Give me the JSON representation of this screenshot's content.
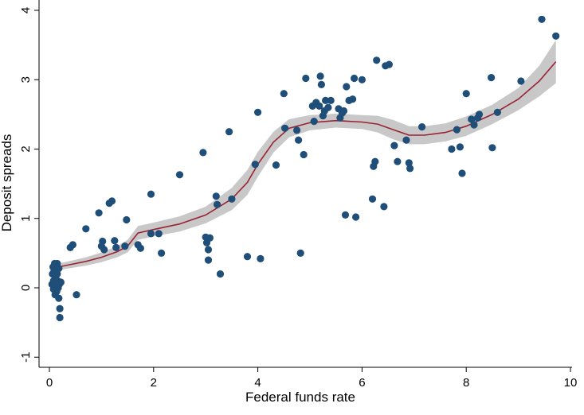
{
  "chart_data": {
    "type": "scatter",
    "xlabel": "Federal funds rate",
    "ylabel": "Deposit spreads",
    "xlim": [
      0,
      10
    ],
    "ylim": [
      -1,
      4
    ],
    "x_ticks": [
      0,
      2,
      4,
      6,
      8,
      10
    ],
    "y_ticks": [
      -1,
      0,
      1,
      2,
      3,
      4
    ],
    "grid": false,
    "colors": {
      "points": "#1f4e79",
      "fit_line": "#9b2335",
      "ci_band": "#c8c8c8"
    },
    "points": [
      {
        "x": 0.05,
        "y": 0.05
      },
      {
        "x": 0.06,
        "y": 0.2
      },
      {
        "x": 0.07,
        "y": 0.3
      },
      {
        "x": 0.08,
        "y": 0.1
      },
      {
        "x": 0.09,
        "y": 0.25
      },
      {
        "x": 0.1,
        "y": 0.35
      },
      {
        "x": 0.1,
        "y": 0.0
      },
      {
        "x": 0.11,
        "y": -0.1
      },
      {
        "x": 0.12,
        "y": 0.15
      },
      {
        "x": 0.13,
        "y": 0.05
      },
      {
        "x": 0.14,
        "y": -0.05
      },
      {
        "x": 0.15,
        "y": 0.2
      },
      {
        "x": 0.15,
        "y": 0.35
      },
      {
        "x": 0.16,
        "y": 0.1
      },
      {
        "x": 0.17,
        "y": 0.0
      },
      {
        "x": 0.18,
        "y": -0.15
      },
      {
        "x": 0.18,
        "y": 0.28
      },
      {
        "x": 0.19,
        "y": 0.05
      },
      {
        "x": 0.2,
        "y": -0.3
      },
      {
        "x": 0.2,
        "y": -0.43
      },
      {
        "x": 0.22,
        "y": 0.08
      },
      {
        "x": 0.12,
        "y": 0.3
      },
      {
        "x": 0.14,
        "y": 0.22
      },
      {
        "x": 0.08,
        "y": -0.02
      },
      {
        "x": 0.4,
        "y": 0.58
      },
      {
        "x": 0.45,
        "y": 0.62
      },
      {
        "x": 0.52,
        "y": -0.1
      },
      {
        "x": 0.7,
        "y": 0.85
      },
      {
        "x": 0.95,
        "y": 1.08
      },
      {
        "x": 1.0,
        "y": 0.6
      },
      {
        "x": 1.02,
        "y": 0.67
      },
      {
        "x": 1.05,
        "y": 0.55
      },
      {
        "x": 1.15,
        "y": 1.22
      },
      {
        "x": 1.2,
        "y": 1.25
      },
      {
        "x": 1.25,
        "y": 0.68
      },
      {
        "x": 1.28,
        "y": 0.58
      },
      {
        "x": 1.45,
        "y": 0.6
      },
      {
        "x": 1.48,
        "y": 0.98
      },
      {
        "x": 1.7,
        "y": 0.62
      },
      {
        "x": 1.75,
        "y": 0.57
      },
      {
        "x": 1.95,
        "y": 1.35
      },
      {
        "x": 1.95,
        "y": 0.78
      },
      {
        "x": 2.1,
        "y": 0.78
      },
      {
        "x": 2.15,
        "y": 0.5
      },
      {
        "x": 2.5,
        "y": 1.63
      },
      {
        "x": 2.95,
        "y": 1.95
      },
      {
        "x": 3.0,
        "y": 0.73
      },
      {
        "x": 3.02,
        "y": 0.65
      },
      {
        "x": 3.05,
        "y": 0.55
      },
      {
        "x": 3.05,
        "y": 0.4
      },
      {
        "x": 3.08,
        "y": 0.72
      },
      {
        "x": 3.2,
        "y": 1.32
      },
      {
        "x": 3.22,
        "y": 1.2
      },
      {
        "x": 3.28,
        "y": 0.2
      },
      {
        "x": 3.45,
        "y": 2.25
      },
      {
        "x": 3.5,
        "y": 1.28
      },
      {
        "x": 3.8,
        "y": 0.45
      },
      {
        "x": 3.95,
        "y": 1.78
      },
      {
        "x": 4.0,
        "y": 2.53
      },
      {
        "x": 4.05,
        "y": 0.42
      },
      {
        "x": 4.35,
        "y": 1.77
      },
      {
        "x": 4.5,
        "y": 2.8
      },
      {
        "x": 4.52,
        "y": 2.3
      },
      {
        "x": 4.75,
        "y": 2.27
      },
      {
        "x": 4.78,
        "y": 2.13
      },
      {
        "x": 4.82,
        "y": 0.5
      },
      {
        "x": 4.88,
        "y": 1.92
      },
      {
        "x": 4.92,
        "y": 3.02
      },
      {
        "x": 5.05,
        "y": 2.62
      },
      {
        "x": 5.08,
        "y": 2.4
      },
      {
        "x": 5.12,
        "y": 2.67
      },
      {
        "x": 5.18,
        "y": 2.62
      },
      {
        "x": 5.2,
        "y": 3.05
      },
      {
        "x": 5.22,
        "y": 2.93
      },
      {
        "x": 5.25,
        "y": 2.48
      },
      {
        "x": 5.28,
        "y": 2.55
      },
      {
        "x": 5.3,
        "y": 2.7
      },
      {
        "x": 5.35,
        "y": 2.6
      },
      {
        "x": 5.4,
        "y": 2.7
      },
      {
        "x": 5.55,
        "y": 2.58
      },
      {
        "x": 5.58,
        "y": 2.45
      },
      {
        "x": 5.62,
        "y": 2.52
      },
      {
        "x": 5.65,
        "y": 2.55
      },
      {
        "x": 5.68,
        "y": 1.05
      },
      {
        "x": 5.7,
        "y": 2.9
      },
      {
        "x": 5.75,
        "y": 2.7
      },
      {
        "x": 5.82,
        "y": 2.72
      },
      {
        "x": 5.85,
        "y": 3.02
      },
      {
        "x": 5.88,
        "y": 1.02
      },
      {
        "x": 6.0,
        "y": 3.0
      },
      {
        "x": 6.2,
        "y": 1.28
      },
      {
        "x": 6.22,
        "y": 1.75
      },
      {
        "x": 6.25,
        "y": 1.82
      },
      {
        "x": 6.28,
        "y": 3.28
      },
      {
        "x": 6.42,
        "y": 1.17
      },
      {
        "x": 6.45,
        "y": 3.2
      },
      {
        "x": 6.52,
        "y": 3.22
      },
      {
        "x": 6.62,
        "y": 2.05
      },
      {
        "x": 6.68,
        "y": 1.82
      },
      {
        "x": 6.85,
        "y": 2.13
      },
      {
        "x": 6.9,
        "y": 1.8
      },
      {
        "x": 6.92,
        "y": 1.72
      },
      {
        "x": 7.15,
        "y": 2.32
      },
      {
        "x": 7.72,
        "y": 2.0
      },
      {
        "x": 7.82,
        "y": 2.28
      },
      {
        "x": 7.88,
        "y": 2.03
      },
      {
        "x": 7.92,
        "y": 1.65
      },
      {
        "x": 8.0,
        "y": 2.8
      },
      {
        "x": 8.1,
        "y": 2.43
      },
      {
        "x": 8.15,
        "y": 2.35
      },
      {
        "x": 8.22,
        "y": 2.45
      },
      {
        "x": 8.25,
        "y": 2.5
      },
      {
        "x": 8.48,
        "y": 3.03
      },
      {
        "x": 8.5,
        "y": 2.02
      },
      {
        "x": 8.6,
        "y": 2.53
      },
      {
        "x": 9.05,
        "y": 2.98
      },
      {
        "x": 9.45,
        "y": 3.87
      },
      {
        "x": 9.72,
        "y": 3.63
      }
    ],
    "fit_line": [
      {
        "x": 0.05,
        "y": 0.28
      },
      {
        "x": 0.3,
        "y": 0.32
      },
      {
        "x": 0.7,
        "y": 0.38
      },
      {
        "x": 1.0,
        "y": 0.44
      },
      {
        "x": 1.3,
        "y": 0.52
      },
      {
        "x": 1.5,
        "y": 0.6
      },
      {
        "x": 1.7,
        "y": 0.79
      },
      {
        "x": 2.0,
        "y": 0.84
      },
      {
        "x": 2.5,
        "y": 0.92
      },
      {
        "x": 3.0,
        "y": 1.05
      },
      {
        "x": 3.5,
        "y": 1.28
      },
      {
        "x": 3.8,
        "y": 1.52
      },
      {
        "x": 4.0,
        "y": 1.78
      },
      {
        "x": 4.3,
        "y": 2.1
      },
      {
        "x": 4.6,
        "y": 2.3
      },
      {
        "x": 5.0,
        "y": 2.38
      },
      {
        "x": 5.5,
        "y": 2.41
      },
      {
        "x": 6.0,
        "y": 2.39
      },
      {
        "x": 6.3,
        "y": 2.36
      },
      {
        "x": 6.6,
        "y": 2.28
      },
      {
        "x": 6.9,
        "y": 2.2
      },
      {
        "x": 7.2,
        "y": 2.2
      },
      {
        "x": 7.6,
        "y": 2.24
      },
      {
        "x": 8.0,
        "y": 2.33
      },
      {
        "x": 8.5,
        "y": 2.5
      },
      {
        "x": 9.0,
        "y": 2.72
      },
      {
        "x": 9.4,
        "y": 2.98
      },
      {
        "x": 9.72,
        "y": 3.26
      }
    ],
    "ci_lower": [
      {
        "x": 0.05,
        "y": 0.22
      },
      {
        "x": 0.3,
        "y": 0.27
      },
      {
        "x": 0.7,
        "y": 0.32
      },
      {
        "x": 1.0,
        "y": 0.37
      },
      {
        "x": 1.3,
        "y": 0.44
      },
      {
        "x": 1.5,
        "y": 0.51
      },
      {
        "x": 1.7,
        "y": 0.69
      },
      {
        "x": 2.0,
        "y": 0.74
      },
      {
        "x": 2.5,
        "y": 0.81
      },
      {
        "x": 3.0,
        "y": 0.93
      },
      {
        "x": 3.5,
        "y": 1.12
      },
      {
        "x": 3.8,
        "y": 1.34
      },
      {
        "x": 4.0,
        "y": 1.6
      },
      {
        "x": 4.3,
        "y": 1.95
      },
      {
        "x": 4.6,
        "y": 2.17
      },
      {
        "x": 5.0,
        "y": 2.27
      },
      {
        "x": 5.5,
        "y": 2.31
      },
      {
        "x": 6.0,
        "y": 2.29
      },
      {
        "x": 6.3,
        "y": 2.24
      },
      {
        "x": 6.6,
        "y": 2.14
      },
      {
        "x": 6.9,
        "y": 2.07
      },
      {
        "x": 7.2,
        "y": 2.07
      },
      {
        "x": 7.6,
        "y": 2.11
      },
      {
        "x": 8.0,
        "y": 2.19
      },
      {
        "x": 8.5,
        "y": 2.36
      },
      {
        "x": 9.0,
        "y": 2.56
      },
      {
        "x": 9.4,
        "y": 2.76
      },
      {
        "x": 9.72,
        "y": 2.95
      }
    ],
    "ci_upper": [
      {
        "x": 0.05,
        "y": 0.34
      },
      {
        "x": 0.3,
        "y": 0.37
      },
      {
        "x": 0.7,
        "y": 0.44
      },
      {
        "x": 1.0,
        "y": 0.51
      },
      {
        "x": 1.3,
        "y": 0.6
      },
      {
        "x": 1.5,
        "y": 0.69
      },
      {
        "x": 1.7,
        "y": 0.89
      },
      {
        "x": 2.0,
        "y": 0.94
      },
      {
        "x": 2.5,
        "y": 1.03
      },
      {
        "x": 3.0,
        "y": 1.17
      },
      {
        "x": 3.5,
        "y": 1.44
      },
      {
        "x": 3.8,
        "y": 1.7
      },
      {
        "x": 4.0,
        "y": 1.96
      },
      {
        "x": 4.3,
        "y": 2.25
      },
      {
        "x": 4.6,
        "y": 2.43
      },
      {
        "x": 5.0,
        "y": 2.49
      },
      {
        "x": 5.5,
        "y": 2.51
      },
      {
        "x": 6.0,
        "y": 2.49
      },
      {
        "x": 6.3,
        "y": 2.48
      },
      {
        "x": 6.6,
        "y": 2.42
      },
      {
        "x": 6.9,
        "y": 2.33
      },
      {
        "x": 7.2,
        "y": 2.33
      },
      {
        "x": 7.6,
        "y": 2.37
      },
      {
        "x": 8.0,
        "y": 2.47
      },
      {
        "x": 8.5,
        "y": 2.64
      },
      {
        "x": 9.0,
        "y": 2.88
      },
      {
        "x": 9.4,
        "y": 3.2
      },
      {
        "x": 9.72,
        "y": 3.57
      }
    ]
  }
}
